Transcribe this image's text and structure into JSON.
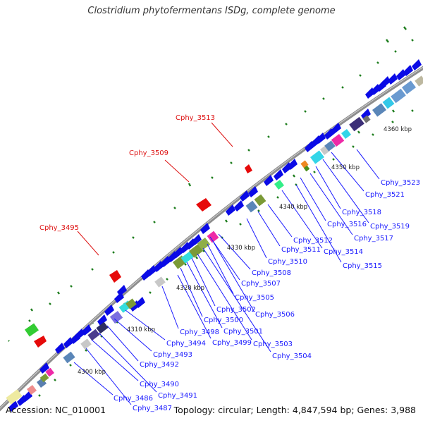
{
  "title": "Clostridium phytofermentans ISDg, complete genome",
  "footer": {
    "accession": "Accession: NC_010001",
    "summary": "Topology: circular; Length: 4,847,594 bp; Genes: 3,988"
  },
  "colors": {
    "backbone": "#888888",
    "forward_gene": "#0a0ae6",
    "reverse_gene": "#e60a0a",
    "blue_label": "#1a1aff",
    "red_label": "#dd1111",
    "gc_ticks": "#1d7d1d"
  },
  "scale_labels": [
    "4300 kbp",
    "4310 kbp",
    "4320 kbp",
    "4330 kbp",
    "4340 kbp",
    "4350 kbp",
    "4360 kbp"
  ],
  "red_gene_labels": [
    "Cphy_3495",
    "Cphy_3509",
    "Cphy_3513"
  ],
  "blue_gene_labels": [
    "Cphy_3486",
    "Cphy_3487",
    "Cphy_3490",
    "Cphy_3491",
    "Cphy_3492",
    "Cphy_3493",
    "Cphy_3494",
    "Cphy_3498",
    "Cphy_3499",
    "Cphy_3500",
    "Cphy_3501",
    "Cphy_3502",
    "Cphy_3503",
    "Cphy_3504",
    "Cphy_3505",
    "Cphy_3506",
    "Cphy_3507",
    "Cphy_3508",
    "Cphy_3510",
    "Cphy_3511",
    "Cphy_3512",
    "Cphy_3514",
    "Cphy_3515",
    "Cphy_3516",
    "Cphy_3517",
    "Cphy_3518",
    "Cphy_3519",
    "Cphy_3521",
    "Cphy_3523"
  ]
}
